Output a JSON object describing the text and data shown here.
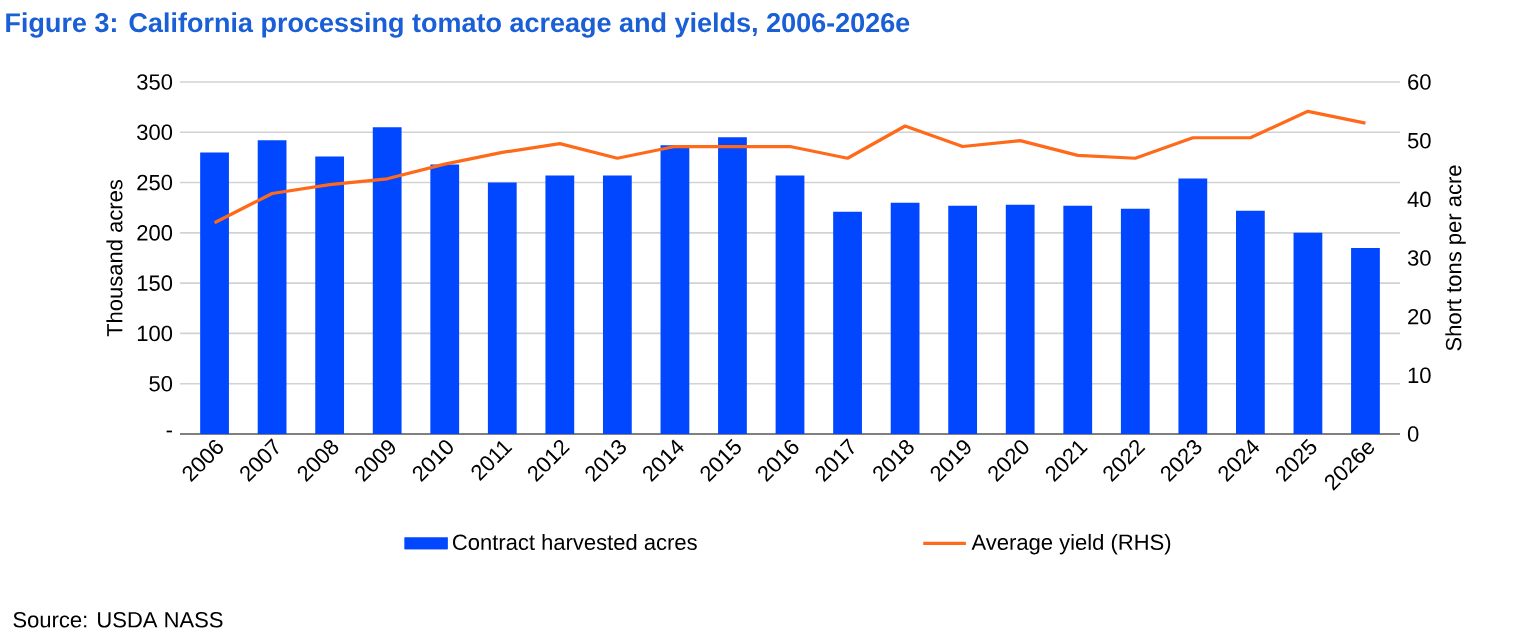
{
  "chart_data": {
    "type": "bar",
    "title": "Figure 3: California processing tomato acreage and yields, 2006-2026e",
    "categories": [
      "2006",
      "2007",
      "2008",
      "2009",
      "2010",
      "2011",
      "2012",
      "2013",
      "2014",
      "2015",
      "2016",
      "2017",
      "2018",
      "2019",
      "2020",
      "2021",
      "2022",
      "2023",
      "2024",
      "2025",
      "2026e"
    ],
    "series": [
      {
        "name": "Contract harvested acres",
        "color": "#0047ff",
        "values": [
          280,
          292,
          276,
          305,
          268,
          250,
          257,
          257,
          287,
          295,
          257,
          221,
          230,
          227,
          228,
          227,
          224,
          254,
          222,
          200,
          185
        ]
      },
      {
        "type": "line",
        "name": "Average yield (RHS)",
        "color": "#ff6a1a",
        "axis": "y2",
        "values": [
          36,
          41,
          42.5,
          43.5,
          46,
          48,
          49.5,
          47,
          49,
          49,
          49,
          47,
          52.5,
          49,
          50,
          47.5,
          47,
          50.5,
          50.5,
          55,
          53
        ]
      }
    ],
    "ylabel": "Thousand acres",
    "y2label": "Short tons per acre",
    "ylim": [
      0,
      350
    ],
    "yticks": [
      {
        "value": 0,
        "label": "-"
      },
      50,
      100,
      150,
      200,
      250,
      300,
      350
    ],
    "y2lim": [
      0,
      60
    ],
    "y2ticks": [
      0,
      10,
      20,
      30,
      40,
      50,
      60
    ],
    "grid": "y",
    "legend": "bottom",
    "annotations": [
      "Source: USDA NASS"
    ]
  }
}
